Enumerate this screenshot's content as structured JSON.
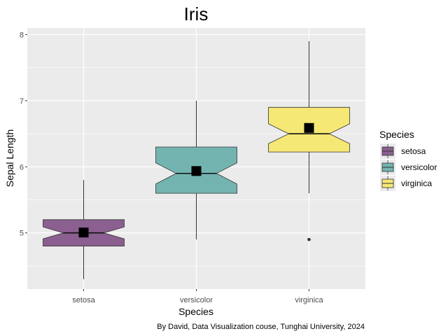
{
  "chart_data": {
    "type": "boxplot",
    "title": "Iris",
    "xlabel": "Species",
    "ylabel": "Sepal Length",
    "caption": "By David, Data Visualization couse, Tunghai University, 2024",
    "categories": [
      "setosa",
      "versicolor",
      "virginica"
    ],
    "ylim": [
      4.15,
      8.1
    ],
    "yticks": [
      5,
      6,
      7,
      8
    ],
    "notched": true,
    "grid": true,
    "legend": {
      "title": "Species",
      "position": "right"
    },
    "series": [
      {
        "name": "setosa",
        "color": "#8B5F8F",
        "whisker_low": 4.3,
        "q1": 4.8,
        "median": 5.0,
        "q3": 5.2,
        "whisker_high": 5.8,
        "notch_low": 4.91,
        "notch_high": 5.09,
        "mean": 5.006,
        "outliers": []
      },
      {
        "name": "versicolor",
        "color": "#73B4B1",
        "whisker_low": 4.9,
        "q1": 5.6,
        "median": 5.9,
        "q3": 6.3,
        "whisker_high": 7.0,
        "notch_low": 5.74,
        "notch_high": 6.06,
        "mean": 5.936,
        "outliers": []
      },
      {
        "name": "virginica",
        "color": "#F6E874",
        "whisker_low": 5.6,
        "q1": 6.225,
        "median": 6.5,
        "q3": 6.9,
        "whisker_high": 7.9,
        "notch_low": 6.35,
        "notch_high": 6.65,
        "mean": 6.588,
        "outliers": [
          4.9
        ]
      }
    ]
  }
}
